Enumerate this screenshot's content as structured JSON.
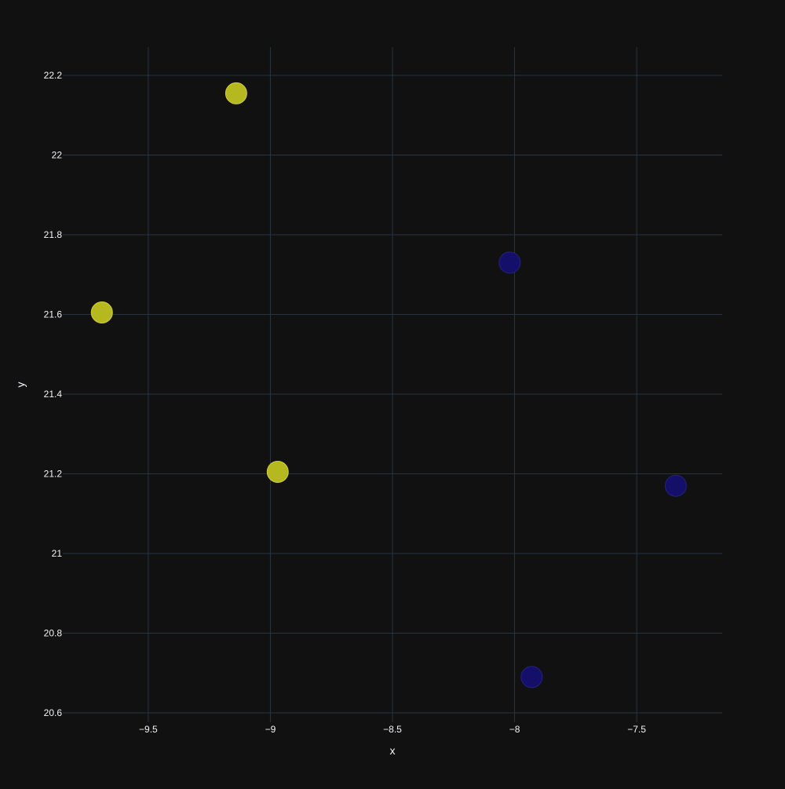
{
  "chart_data": {
    "type": "scatter",
    "title": "",
    "xlabel": "x",
    "ylabel": "y",
    "grid": true,
    "xlim": [
      -9.85,
      -7.15
    ],
    "ylim": [
      20.6,
      22.27
    ],
    "xticks": [
      -9.5,
      -9,
      -8.5,
      -8,
      -7.5
    ],
    "xtick_labels": [
      "−9.5",
      "−9",
      "−8.5",
      "−8",
      "−7.5"
    ],
    "yticks": [
      20.6,
      20.8,
      21,
      21.2,
      21.4,
      21.6,
      21.8,
      22,
      22.2
    ],
    "ytick_labels": [
      "20.6",
      "20.8",
      "21",
      "21.2",
      "21.4",
      "21.6",
      "21.8",
      "22",
      "22.2"
    ],
    "point_colors": {
      "yellow": "#b5b81f",
      "yellow_stroke": "#cfd23a",
      "navy": "#14106a",
      "navy_stroke": "#25217f"
    },
    "points": [
      {
        "x": -9.69,
        "y": 21.605,
        "color": "yellow"
      },
      {
        "x": -9.14,
        "y": 22.155,
        "color": "yellow"
      },
      {
        "x": -8.97,
        "y": 21.205,
        "color": "yellow"
      },
      {
        "x": -8.02,
        "y": 21.73,
        "color": "navy"
      },
      {
        "x": -7.93,
        "y": 20.69,
        "color": "navy"
      },
      {
        "x": -7.34,
        "y": 21.17,
        "color": "navy"
      }
    ]
  }
}
